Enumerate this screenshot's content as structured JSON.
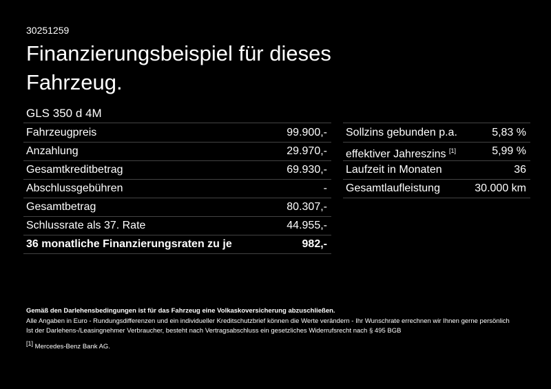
{
  "id": "30251259",
  "title": [
    "Finanzierungsbeispiel für dieses",
    "Fahrzeug."
  ],
  "model": "GLS 350 d 4M",
  "left_table": {
    "rows": [
      [
        "Fahrzeugpreis",
        "99.900,-"
      ],
      [
        "Anzahlung",
        "29.970,-"
      ],
      [
        "Gesamtkreditbetrag",
        "69.930,-"
      ],
      [
        "Abschlussgebühren",
        "-"
      ],
      [
        "Gesamtbetrag",
        "80.307,-"
      ],
      [
        "Schlussrate als 37. Rate",
        "44.955,-"
      ],
      [
        "36 monatliche Finanzierungsraten zu je",
        "982,-"
      ]
    ]
  },
  "right_table": {
    "rows": [
      {
        "label": "Sollzins gebunden p.a.",
        "value": "5,83 %"
      },
      {
        "label": "effektiver Jahreszins",
        "note": "[1]",
        "value": "5,99 %"
      },
      {
        "label": "Laufzeit in Monaten",
        "value": "36"
      },
      {
        "label": "Gesamtlaufleistung",
        "value": "30.000 km"
      }
    ]
  },
  "footer": {
    "bold": "Gemäß den Darlehensbedingungen ist für das Fahrzeug eine Volkaskoversicherung abzuschließen.",
    "lines": [
      "Alle Angaben in Euro - Rundungsdifferenzen und ein individueller Kreditschutzbrief können die Werte verändern - Ihr Wunschrate errechnen wir Ihnen gerne persönlich",
      "Ist der Darlehens-/Leasingnehmer Verbraucher, besteht nach Vertragsabschluss ein gesetzliches Widerrufsrecht nach § 495 BGB"
    ],
    "footnote": {
      "marker": "[1]",
      "text": "Mercedes-Benz Bank AG."
    }
  }
}
